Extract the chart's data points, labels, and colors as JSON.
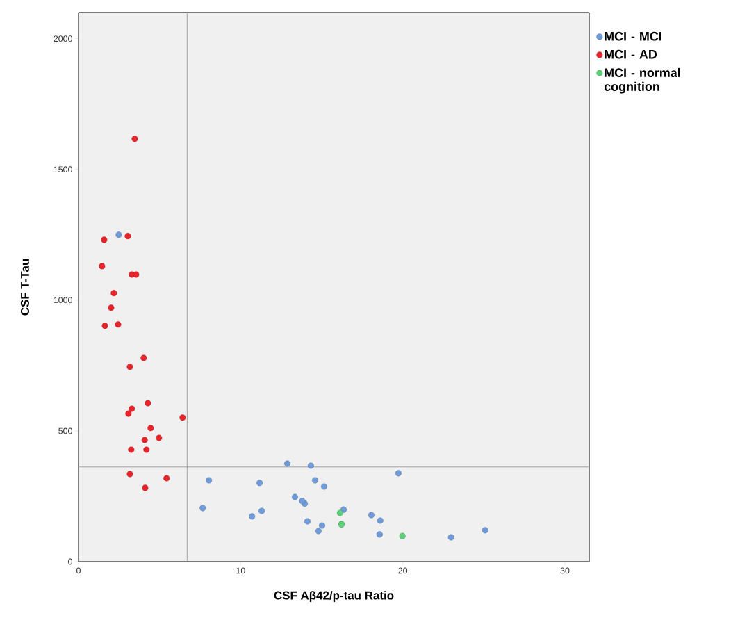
{
  "chart_data": {
    "type": "scatter",
    "xlabel": "CSF Aβ42/p-tau Ratio",
    "ylabel": "CSF T-Tau",
    "xlim": [
      0,
      31.5
    ],
    "ylim": [
      0,
      2100
    ],
    "xticks": [
      0,
      10,
      20,
      30
    ],
    "yticks": [
      0,
      500,
      1000,
      1500,
      2000
    ],
    "grid": false,
    "legend": "right",
    "marker": "circle",
    "ref_lines": [
      {
        "axis": "x",
        "value": 6.7,
        "color": "#8c8c8c"
      },
      {
        "axis": "y",
        "value": 362,
        "color": "#8c8c8c"
      }
    ],
    "series": [
      {
        "name": "MCI - MCI",
        "color": "#6f9bd8",
        "x": [
          2.48,
          12.88,
          14.33,
          19.73,
          8.04,
          11.17,
          14.59,
          15.15,
          13.35,
          13.95,
          13.8,
          7.66,
          10.7,
          11.3,
          14.12,
          15.02,
          14.8,
          16.35,
          18.06,
          18.61,
          18.57,
          22.98,
          25.08
        ],
        "values": [
          1250,
          375,
          367,
          338,
          311,
          301,
          311,
          287,
          247,
          222,
          232,
          205,
          173,
          194,
          154,
          138,
          117,
          199,
          178,
          157,
          104,
          93,
          120
        ]
      },
      {
        "name": "MCI - AD",
        "color": "#e8242b",
        "x": [
          3.47,
          1.58,
          3.04,
          1.45,
          3.29,
          3.55,
          2.18,
          2.01,
          1.63,
          2.44,
          4.02,
          3.17,
          4.28,
          3.29,
          3.08,
          6.42,
          4.45,
          4.96,
          4.08,
          4.19,
          3.25,
          3.17,
          5.43,
          4.11
        ],
        "values": [
          1617,
          1231,
          1245,
          1130,
          1098,
          1098,
          1027,
          971,
          902,
          907,
          779,
          745,
          606,
          585,
          566,
          551,
          511,
          473,
          465,
          428,
          428,
          335,
          319,
          282
        ]
      },
      {
        "name": "MCI - normal cognition",
        "color": "#5dd07a",
        "x": [
          16.13,
          16.22,
          16.22,
          19.98
        ],
        "values": [
          186,
          144,
          142,
          98
        ]
      }
    ]
  }
}
